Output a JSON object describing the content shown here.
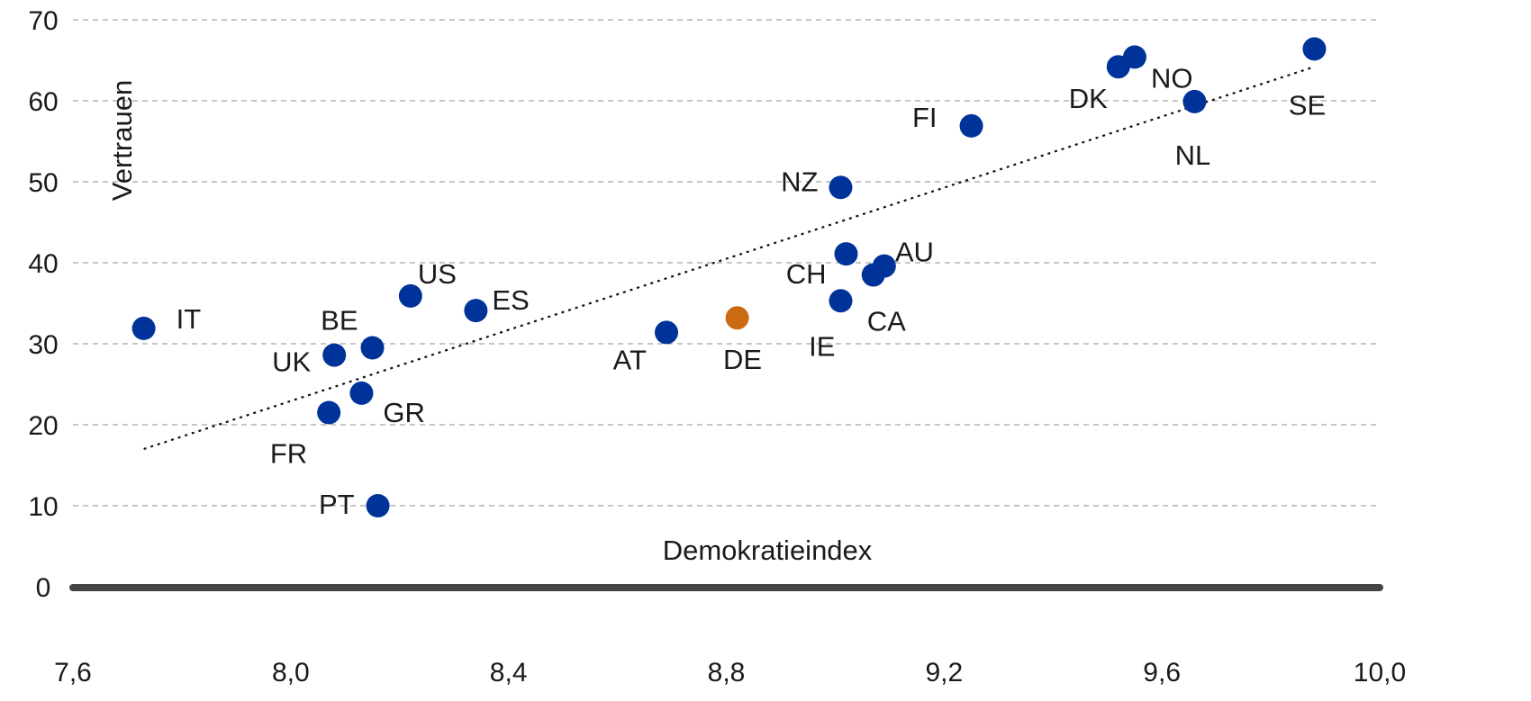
{
  "chart_data": {
    "type": "scatter",
    "xlabel": "Demokratieindex",
    "ylabel": "Vertrauen",
    "xlim": [
      7.6,
      10.0
    ],
    "ylim": [
      0,
      70
    ],
    "x_ticks": [
      "7,6",
      "8,0",
      "8,4",
      "8,8",
      "9,2",
      "9,6",
      "10,0"
    ],
    "y_ticks": [
      "0",
      "10",
      "20",
      "30",
      "40",
      "50",
      "60",
      "70"
    ],
    "grid": "horizontal dashed",
    "colors": {
      "default": "#003399",
      "highlight": "#cc6a14",
      "trend": "#111111",
      "axis": "#444444"
    },
    "points": [
      {
        "label": "IT",
        "x": 7.73,
        "y": 31.9,
        "highlight": false
      },
      {
        "label": "UK",
        "x": 8.08,
        "y": 28.6,
        "highlight": false,
        "label_highlight": true
      },
      {
        "label": "BE",
        "x": 8.15,
        "y": 29.5,
        "highlight": false
      },
      {
        "label": "US",
        "x": 8.22,
        "y": 35.9,
        "highlight": false,
        "label_highlight": true
      },
      {
        "label": "GR",
        "x": 8.13,
        "y": 23.9,
        "highlight": false
      },
      {
        "label": "FR",
        "x": 8.07,
        "y": 21.5,
        "highlight": false
      },
      {
        "label": "PT",
        "x": 8.16,
        "y": 10.0,
        "highlight": false
      },
      {
        "label": "ES",
        "x": 8.34,
        "y": 34.1,
        "highlight": false
      },
      {
        "label": "AT",
        "x": 8.69,
        "y": 31.4,
        "highlight": false
      },
      {
        "label": "DE",
        "x": 8.82,
        "y": 33.2,
        "highlight": true
      },
      {
        "label": "IE",
        "x": 9.01,
        "y": 35.3,
        "highlight": false
      },
      {
        "label": "NZ",
        "x": 9.01,
        "y": 49.3,
        "highlight": false
      },
      {
        "label": "CH",
        "x": 9.02,
        "y": 41.1,
        "highlight": false
      },
      {
        "label": "CA",
        "x": 9.07,
        "y": 38.5,
        "highlight": false
      },
      {
        "label": "AU",
        "x": 9.09,
        "y": 39.6,
        "highlight": false
      },
      {
        "label": "FI",
        "x": 9.25,
        "y": 56.9,
        "highlight": false
      },
      {
        "label": "DK",
        "x": 9.52,
        "y": 64.2,
        "highlight": false
      },
      {
        "label": "NO",
        "x": 9.55,
        "y": 65.4,
        "highlight": false
      },
      {
        "label": "NL",
        "x": 9.66,
        "y": 59.9,
        "highlight": false
      },
      {
        "label": "SE",
        "x": 9.88,
        "y": 66.4,
        "highlight": false
      }
    ],
    "trendline": {
      "x": [
        7.73,
        9.88
      ],
      "y": [
        17.0,
        64.2
      ]
    }
  }
}
